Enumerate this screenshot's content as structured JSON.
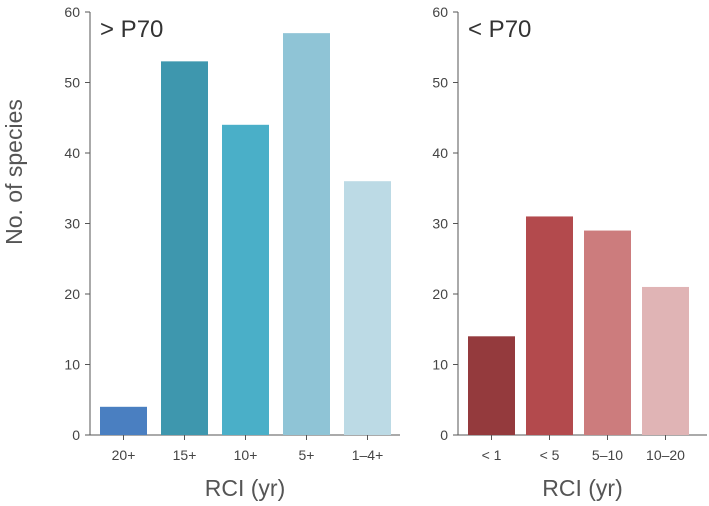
{
  "chart_data": [
    {
      "type": "bar",
      "title": "> P70",
      "xlabel": "RCI (yr)",
      "ylabel": "No. of species",
      "ylim": [
        0,
        60
      ],
      "yticks": [
        "0",
        "10",
        "20",
        "30",
        "40",
        "50",
        "60"
      ],
      "categories": [
        "20+",
        "15+",
        "10+",
        "5+",
        "1–4+"
      ],
      "values": [
        4,
        53,
        44,
        57,
        36
      ],
      "colors": [
        "#4a7fc1",
        "#3e97ae",
        "#4aafc8",
        "#8fc4d6",
        "#bcdae5"
      ],
      "grid": false
    },
    {
      "type": "bar",
      "title": "< P70",
      "xlabel": "RCI (yr)",
      "ylabel": "",
      "ylim": [
        0,
        60
      ],
      "yticks": [
        "0",
        "10",
        "20",
        "30",
        "40",
        "50",
        "60"
      ],
      "categories": [
        "< 1",
        "< 5",
        "5–10",
        "10–20"
      ],
      "values": [
        14,
        31,
        29,
        21
      ],
      "colors": [
        "#943a3d",
        "#b34a4d",
        "#cc7c7d",
        "#e0b4b5"
      ],
      "grid": false
    }
  ]
}
